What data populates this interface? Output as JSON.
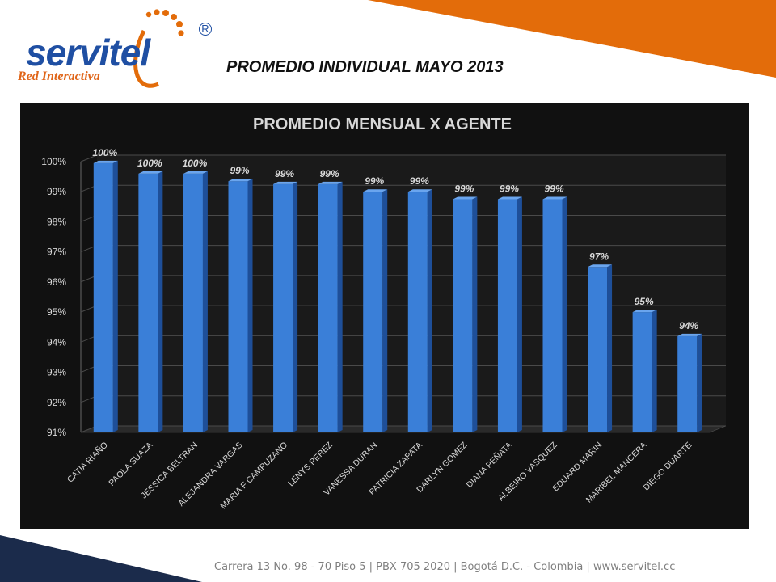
{
  "logo": {
    "word": "servitel",
    "tagline": "Red Interactiva",
    "registered": "R"
  },
  "page_title": "PROMEDIO INDIVIDUAL MAYO 2013",
  "footer": "Carrera 13 No. 98 - 70 Piso 5 | PBX 705 2020 | Bogotá D.C. - Colombia | www.servitel.cc",
  "colors": {
    "accent_orange": "#e36c0a",
    "navy": "#1b2b4b",
    "brand_blue": "#1f4fa3",
    "bar_blue": "#3a7fd8",
    "chart_background": "#111111"
  },
  "chart_data": {
    "type": "bar",
    "title": "PROMEDIO MENSUAL X AGENTE",
    "xlabel": "",
    "ylabel": "",
    "ylim": [
      0.91,
      1.0
    ],
    "ytick_labels": [
      "91%",
      "92%",
      "93%",
      "94%",
      "95%",
      "96%",
      "97%",
      "98%",
      "99%",
      "100%"
    ],
    "grid": true,
    "legend": "none",
    "categories": [
      "CATIA RIAÑO",
      "PAOLA SUAZA",
      "JESSICA BELTRAN",
      "ALEJANDRA VARGAS",
      "MARIA F CAMPUZANO",
      "LENYS PEREZ",
      "VANESSA DURAN",
      "PATRICIA ZAPATA",
      "DARLYN GOMEZ",
      "DIANA PEÑATA",
      "ALBEIRO VASQUEZ",
      "EDUARD MARIN",
      "MARIBEL MANCERA",
      "DIEGO DUARTE"
    ],
    "values": [
      0.9995,
      0.996,
      0.996,
      0.9935,
      0.9925,
      0.9925,
      0.99,
      0.99,
      0.9875,
      0.9875,
      0.9875,
      0.965,
      0.95,
      0.942
    ],
    "data_labels": [
      "100%",
      "100%",
      "100%",
      "99%",
      "99%",
      "99%",
      "99%",
      "99%",
      "99%",
      "99%",
      "99%",
      "97%",
      "95%",
      "94%"
    ]
  }
}
